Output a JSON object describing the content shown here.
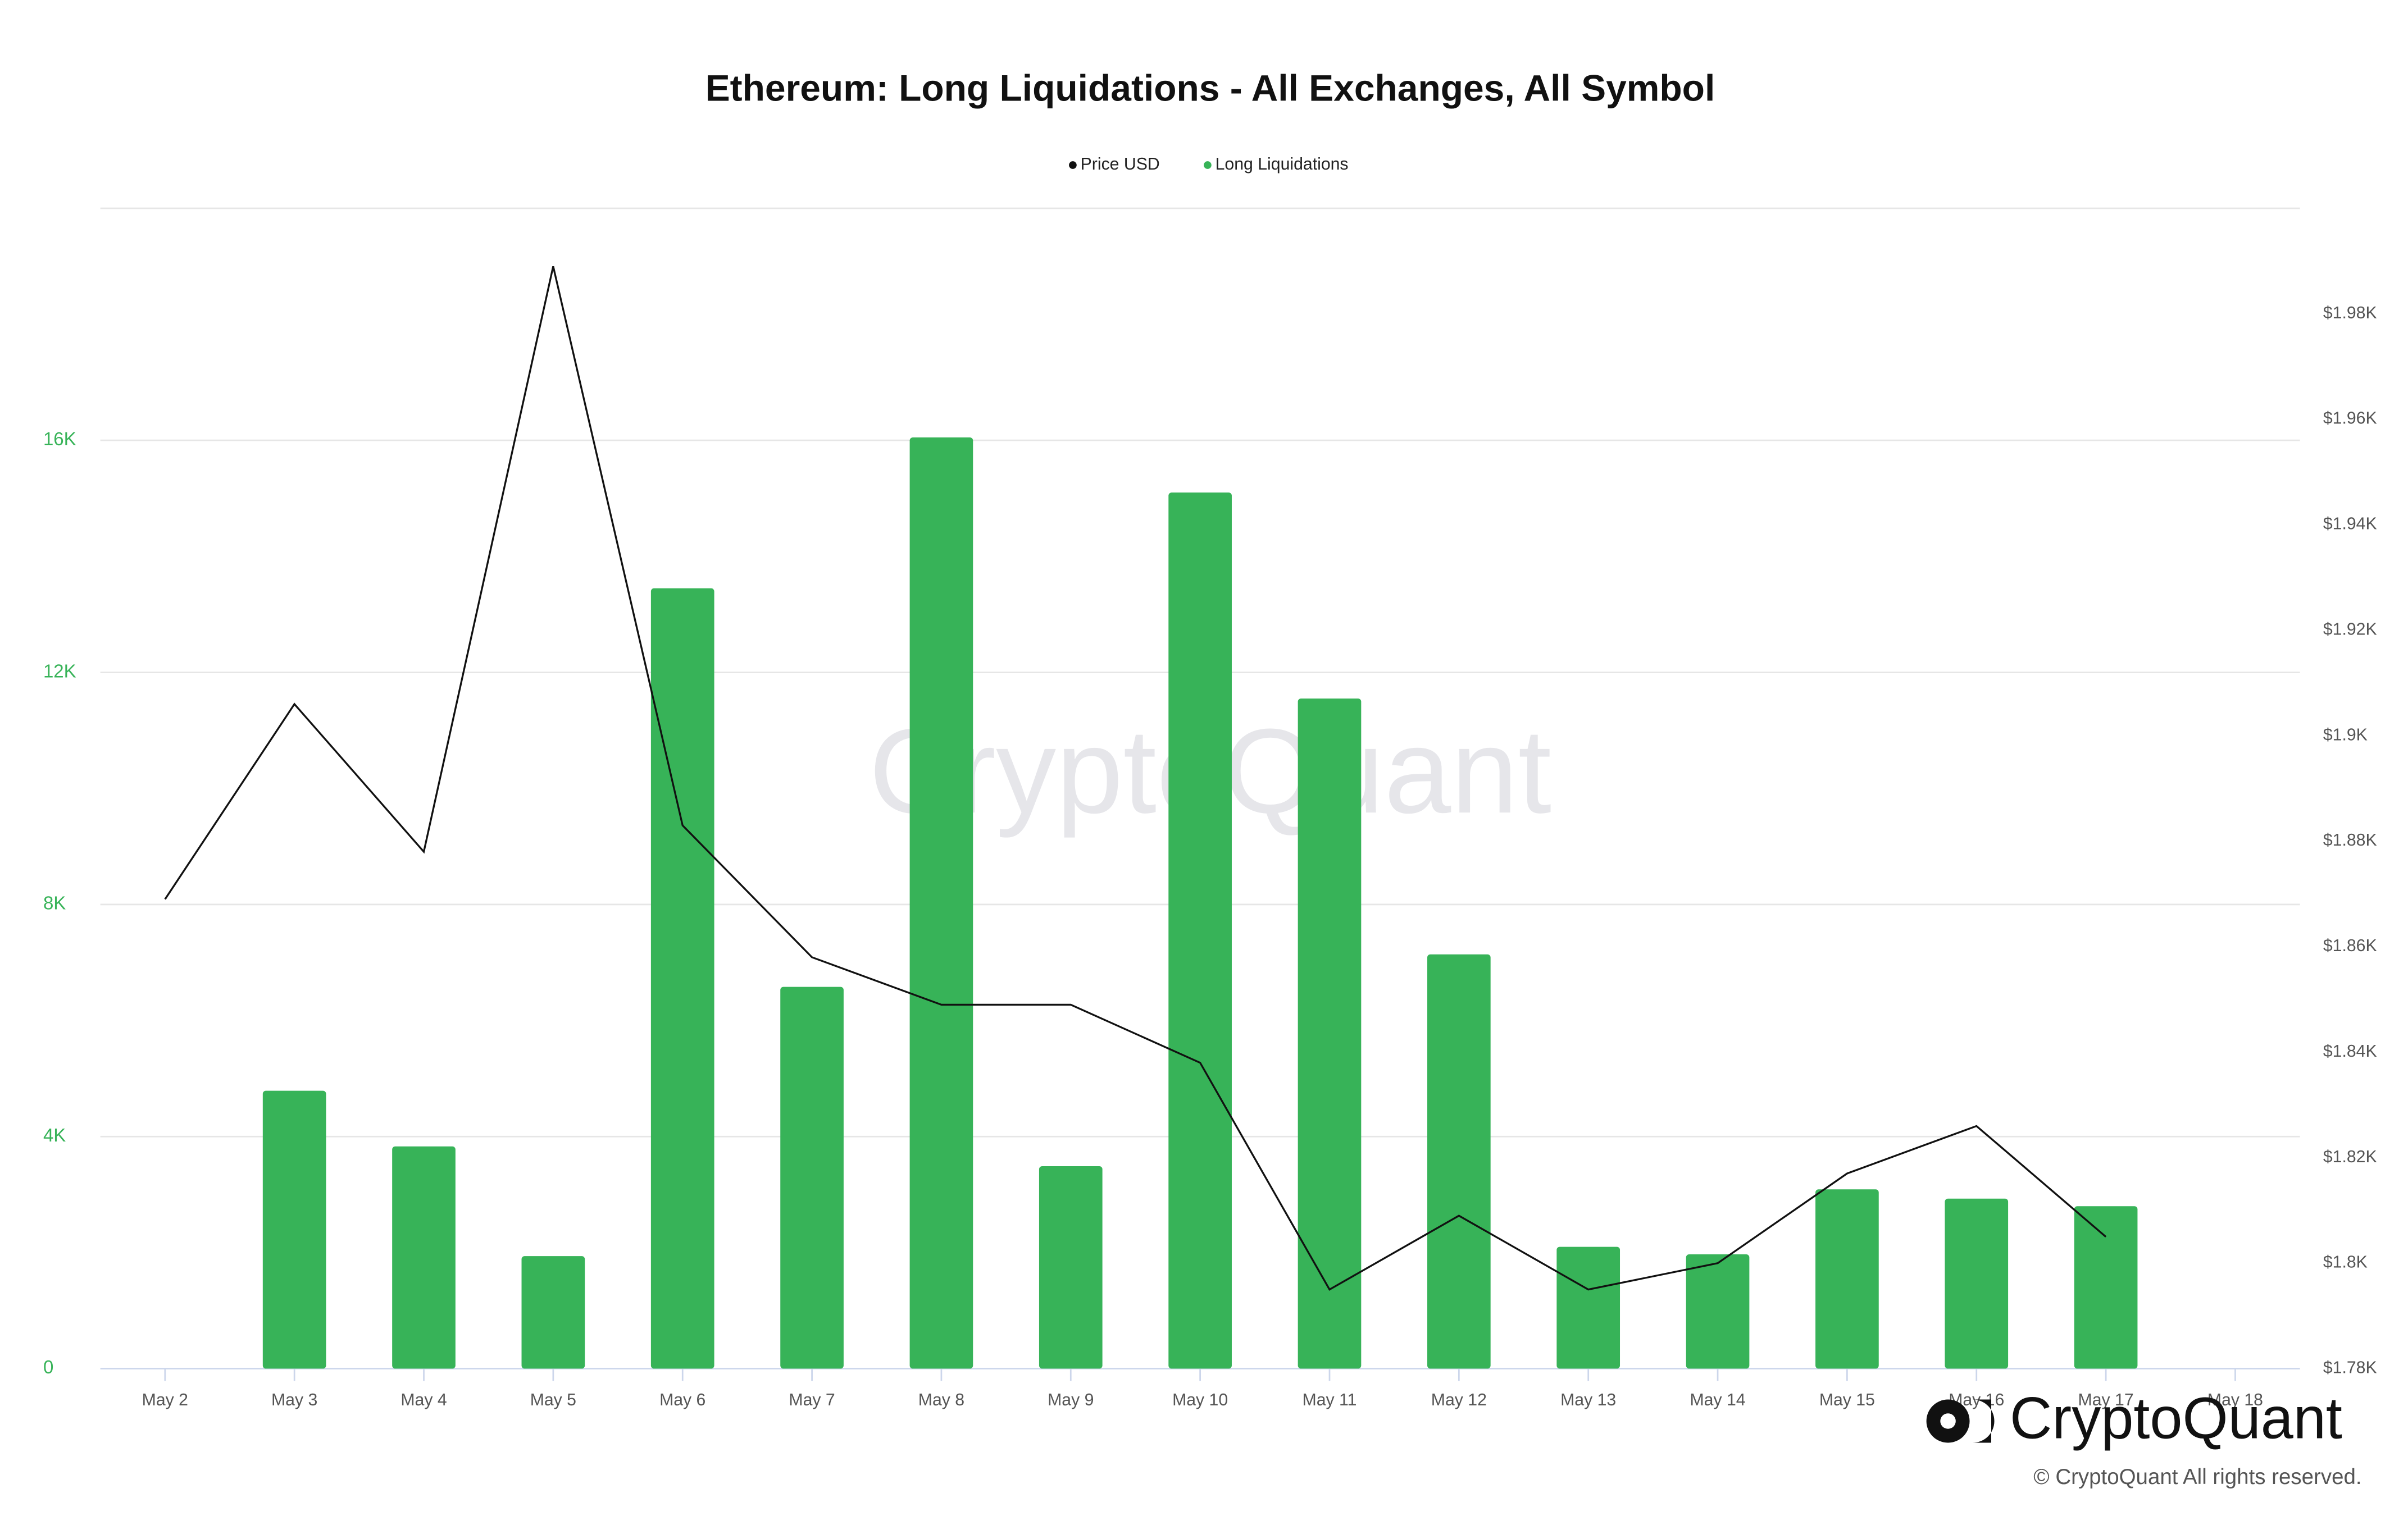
{
  "chart_data": {
    "type": "bar",
    "title": "Ethereum: Long Liquidations - All Exchanges, All Symbol",
    "watermark": "CryptoQuant",
    "brand": "CryptoQuant",
    "copyright": "© CryptoQuant All rights reserved.",
    "categories": [
      "May 2",
      "May 3",
      "May 4",
      "May 5",
      "May 6",
      "May 7",
      "May 8",
      "May 9",
      "May 10",
      "May 11",
      "May 12",
      "May 13",
      "May 14",
      "May 15",
      "May 16",
      "May 17",
      "May 18"
    ],
    "series": [
      {
        "name": "Price USD",
        "color": "#111111",
        "type": "line",
        "axis": "y2",
        "values": [
          1869,
          1906,
          1878,
          1989,
          1883,
          1858,
          1849,
          1849,
          1838,
          1795,
          1809,
          1795,
          1800,
          1817,
          1826,
          1805,
          null
        ]
      },
      {
        "name": "Long Liquidations",
        "color": "#37b358",
        "type": "bar",
        "values": [
          null,
          4790,
          3830,
          1940,
          13450,
          6580,
          16050,
          3490,
          15100,
          11550,
          7140,
          2100,
          1970,
          3090,
          2930,
          2800,
          null
        ]
      }
    ],
    "ylim": [
      0,
      20000
    ],
    "yticks": [
      0,
      {
        "value": 4000,
        "label": "4K"
      },
      {
        "value": 8000,
        "label": "8K"
      },
      {
        "value": 12000,
        "label": "12K"
      },
      {
        "value": 16000,
        "label": "16K"
      }
    ],
    "y2lim": [
      1780,
      2000
    ],
    "y2ticks": [
      {
        "value": 1780,
        "label": "$1.78K"
      },
      {
        "value": 1800,
        "label": "$1.8K"
      },
      {
        "value": 1820,
        "label": "$1.82K"
      },
      {
        "value": 1840,
        "label": "$1.84K"
      },
      {
        "value": 1860,
        "label": "$1.86K"
      },
      {
        "value": 1880,
        "label": "$1.88K"
      },
      {
        "value": 1900,
        "label": "$1.9K"
      },
      {
        "value": 1920,
        "label": "$1.92K"
      },
      {
        "value": 1940,
        "label": "$1.94K"
      },
      {
        "value": 1960,
        "label": "$1.96K"
      },
      {
        "value": 1980,
        "label": "$1.98K"
      }
    ],
    "grid": true,
    "legend": "top"
  }
}
